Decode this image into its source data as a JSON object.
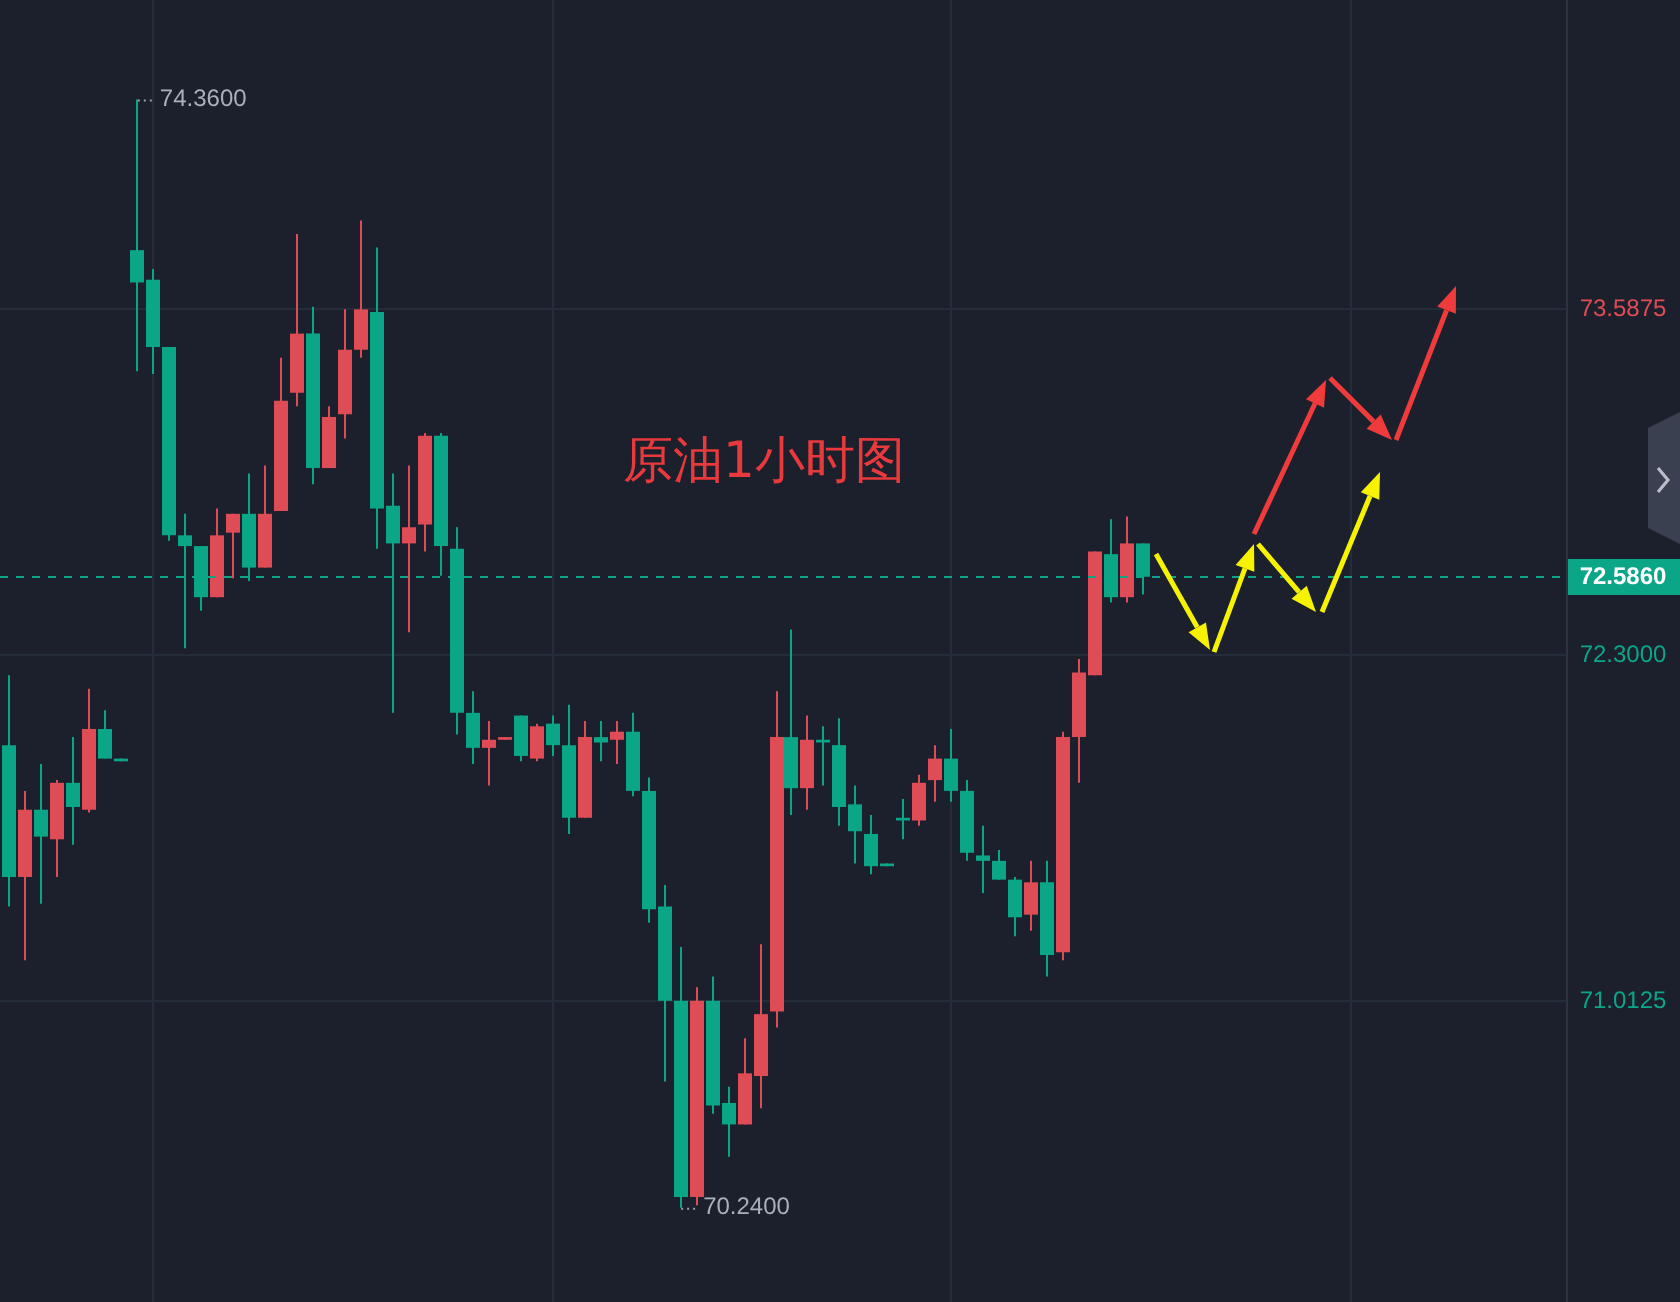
{
  "chart_data": {
    "type": "candlestick",
    "title": "原油1小时图",
    "categories": [
      null,
      null,
      null,
      null,
      null,
      null,
      null,
      null,
      null,
      null,
      null,
      null,
      null,
      null,
      null,
      null,
      null,
      null,
      null,
      null,
      null,
      null,
      null,
      null,
      null,
      null,
      null,
      null,
      null,
      null,
      null,
      null,
      null,
      null,
      null,
      null,
      null,
      null,
      null,
      null,
      null,
      null,
      null,
      null,
      null,
      null,
      null,
      null,
      null,
      null,
      null,
      null,
      null,
      null,
      null,
      null,
      null,
      null,
      null,
      null,
      null,
      null,
      null,
      null,
      null,
      null,
      null,
      null,
      null,
      null,
      null,
      null,
      null,
      null,
      null,
      null,
      null,
      null,
      null,
      null,
      null,
      null,
      null,
      null,
      null,
      null,
      null,
      null,
      null,
      null,
      null,
      null,
      null,
      null,
      null,
      null,
      null,
      null
    ],
    "ohlc": [
      [
        71.96,
        72.22,
        71.36,
        71.47
      ],
      [
        71.47,
        71.79,
        71.16,
        71.72
      ],
      [
        71.72,
        71.89,
        71.37,
        71.62
      ],
      [
        71.61,
        71.83,
        71.47,
        71.82
      ],
      [
        71.82,
        71.99,
        71.59,
        71.73
      ],
      [
        71.72,
        72.17,
        71.71,
        72.02
      ],
      [
        72.02,
        72.09,
        71.91,
        71.91
      ],
      [
        71.91,
        71.91,
        71.9,
        71.9
      ],
      [
        73.8,
        74.36,
        73.35,
        73.68
      ],
      [
        73.69,
        73.73,
        73.34,
        73.44
      ],
      [
        73.44,
        73.44,
        72.72,
        72.74
      ],
      [
        72.74,
        72.82,
        72.32,
        72.7
      ],
      [
        72.7,
        72.7,
        72.46,
        72.51
      ],
      [
        72.51,
        72.84,
        72.51,
        72.74
      ],
      [
        72.75,
        72.82,
        72.58,
        72.82
      ],
      [
        72.82,
        72.97,
        72.57,
        72.62
      ],
      [
        72.62,
        73.0,
        72.62,
        72.82
      ],
      [
        72.83,
        73.4,
        72.83,
        73.24
      ],
      [
        73.27,
        73.86,
        73.22,
        73.49
      ],
      [
        73.49,
        73.59,
        72.93,
        72.99
      ],
      [
        72.99,
        73.22,
        72.99,
        73.18
      ],
      [
        73.19,
        73.58,
        73.1,
        73.43
      ],
      [
        73.43,
        73.91,
        73.4,
        73.58
      ],
      [
        73.57,
        73.81,
        72.69,
        72.84
      ],
      [
        72.85,
        72.97,
        72.08,
        72.71
      ],
      [
        72.71,
        73.0,
        72.38,
        72.77
      ],
      [
        72.78,
        73.12,
        72.68,
        73.11
      ],
      [
        73.11,
        73.12,
        72.59,
        72.7
      ],
      [
        72.69,
        72.77,
        72.0,
        72.08
      ],
      [
        72.08,
        72.16,
        71.89,
        71.95
      ],
      [
        71.95,
        72.05,
        71.81,
        71.98
      ],
      [
        71.98,
        71.99,
        71.98,
        71.99
      ],
      [
        72.07,
        72.07,
        71.9,
        71.92
      ],
      [
        71.91,
        72.04,
        71.9,
        72.03
      ],
      [
        72.04,
        72.07,
        71.92,
        71.96
      ],
      [
        71.96,
        72.11,
        71.63,
        71.69
      ],
      [
        71.69,
        72.05,
        71.69,
        71.99
      ],
      [
        71.99,
        72.05,
        71.9,
        71.97
      ],
      [
        71.98,
        72.05,
        71.89,
        72.01
      ],
      [
        72.01,
        72.08,
        71.77,
        71.79
      ],
      [
        71.79,
        71.84,
        71.3,
        71.35
      ],
      [
        71.36,
        71.44,
        70.71,
        71.01
      ],
      [
        71.01,
        71.21,
        70.24,
        70.28
      ],
      [
        70.28,
        71.06,
        70.25,
        71.01
      ],
      [
        71.01,
        71.1,
        70.59,
        70.62
      ],
      [
        70.63,
        70.69,
        70.43,
        70.55
      ],
      [
        70.55,
        70.87,
        70.55,
        70.74
      ],
      [
        70.73,
        71.22,
        70.61,
        70.96
      ],
      [
        70.97,
        72.16,
        70.91,
        71.99
      ],
      [
        71.99,
        72.39,
        71.7,
        71.8
      ],
      [
        71.8,
        72.07,
        71.72,
        71.98
      ],
      [
        71.98,
        72.03,
        71.81,
        71.97
      ],
      [
        71.96,
        72.06,
        71.66,
        71.73
      ],
      [
        71.74,
        71.81,
        71.52,
        71.64
      ],
      [
        71.63,
        71.7,
        71.48,
        71.51
      ],
      [
        71.52,
        71.52,
        71.51,
        71.51
      ],
      [
        71.69,
        71.76,
        71.61,
        71.68
      ],
      [
        71.68,
        71.85,
        71.66,
        71.82
      ],
      [
        71.83,
        71.96,
        71.75,
        71.91
      ],
      [
        71.91,
        72.02,
        71.75,
        71.79
      ],
      [
        71.79,
        71.83,
        71.53,
        71.56
      ],
      [
        71.55,
        71.66,
        71.41,
        71.53
      ],
      [
        71.53,
        71.57,
        71.46,
        71.46
      ],
      [
        71.46,
        71.47,
        71.25,
        71.32
      ],
      [
        71.33,
        71.53,
        71.27,
        71.45
      ],
      [
        71.45,
        71.53,
        71.1,
        71.18
      ],
      [
        71.19,
        72.01,
        71.16,
        71.99
      ],
      [
        71.99,
        72.28,
        71.82,
        72.23
      ],
      [
        72.22,
        72.68,
        72.22,
        72.68
      ],
      [
        72.67,
        72.8,
        72.49,
        72.51
      ],
      [
        72.51,
        72.81,
        72.49,
        72.71
      ],
      [
        72.71,
        72.71,
        72.52,
        72.586
      ],
      null,
      null,
      null,
      null,
      null,
      null,
      null,
      null,
      null,
      null,
      null,
      null,
      null,
      null,
      null,
      null,
      null,
      null,
      null,
      null,
      null,
      null,
      null,
      null,
      null,
      null
    ],
    "colors": [
      "#0ba688",
      "#e04c56",
      "#0ba688",
      "#e04c56",
      "#0ba688",
      "#e04c56",
      "#0ba688",
      "#0ba688",
      "#0ba688",
      "#0ba688",
      "#0ba688",
      "#0ba688",
      "#0ba688",
      "#e04c56",
      "#e04c56",
      "#0ba688",
      "#e04c56",
      "#e04c56",
      "#e04c56",
      "#0ba688",
      "#e04c56",
      "#e04c56",
      "#e04c56",
      "#0ba688",
      "#0ba688",
      "#e04c56",
      "#e04c56",
      "#0ba688",
      "#0ba688",
      "#0ba688",
      "#e04c56",
      "#e04c56",
      "#0ba688",
      "#e04c56",
      "#0ba688",
      "#0ba688",
      "#e04c56",
      "#0ba688",
      "#e04c56",
      "#0ba688",
      "#0ba688",
      "#0ba688",
      "#0ba688",
      "#e04c56",
      "#0ba688",
      "#0ba688",
      "#e04c56",
      "#e04c56",
      "#e04c56",
      "#0ba688",
      "#e04c56",
      "#0ba688",
      "#0ba688",
      "#0ba688",
      "#0ba688",
      "#0ba688",
      "#0ba688",
      "#e04c56",
      "#e04c56",
      "#0ba688",
      "#0ba688",
      "#0ba688",
      "#0ba688",
      "#0ba688",
      "#e04c56",
      "#0ba688",
      "#e04c56",
      "#e04c56",
      "#e04c56",
      "#0ba688",
      "#e04c56",
      "#0ba688",
      null,
      null,
      null,
      null,
      null,
      null,
      null,
      null,
      null,
      null,
      null,
      null,
      null,
      null,
      null,
      null,
      null,
      null,
      null,
      null,
      null,
      null,
      null,
      null,
      null,
      null
    ],
    "ylim": [
      69.89,
      74.73
    ],
    "yticks": [
      {
        "value": 73.5875,
        "label": "73.5875"
      },
      {
        "value": 72.3,
        "label": "72.3000"
      },
      {
        "value": 71.0125,
        "label": "71.0125"
      }
    ],
    "ref_lines": [
      {
        "axis": "y",
        "value": 72.586,
        "label": "72.5860",
        "color": "#0ba688",
        "line_style": "dashed"
      }
    ],
    "annotations": [
      "74.3600",
      "70.2400"
    ],
    "grid": true
  }
}
